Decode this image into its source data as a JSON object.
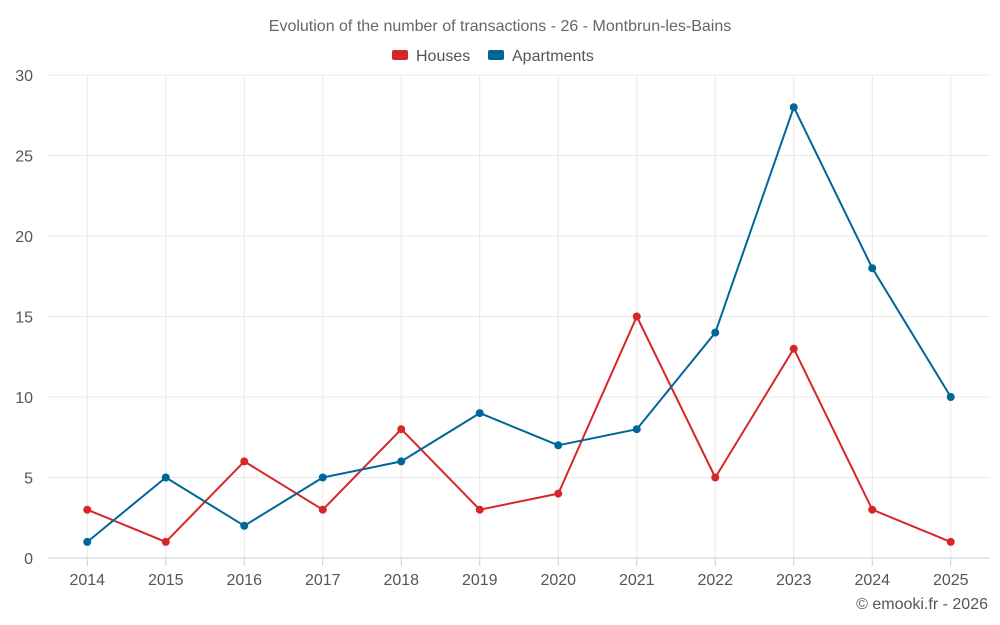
{
  "chart_data": {
    "type": "line",
    "title": "Evolution of the number of transactions - 26 - Montbrun-les-Bains",
    "categories": [
      "2014",
      "2015",
      "2016",
      "2017",
      "2018",
      "2019",
      "2020",
      "2021",
      "2022",
      "2023",
      "2024",
      "2025"
    ],
    "series": [
      {
        "name": "Houses",
        "color": "#d62728",
        "values": [
          3,
          1,
          6,
          3,
          8,
          3,
          4,
          15,
          5,
          13,
          3,
          1
        ]
      },
      {
        "name": "Apartments",
        "color": "#006699",
        "values": [
          1,
          5,
          2,
          5,
          6,
          9,
          7,
          8,
          14,
          28,
          18,
          10
        ]
      }
    ],
    "ylim": [
      0,
      30
    ],
    "yticks": [
      "0",
      "5",
      "10",
      "15",
      "20",
      "25",
      "30"
    ],
    "grid": true,
    "legend_position": "top-center",
    "credit": "© emooki.fr - 2026"
  }
}
